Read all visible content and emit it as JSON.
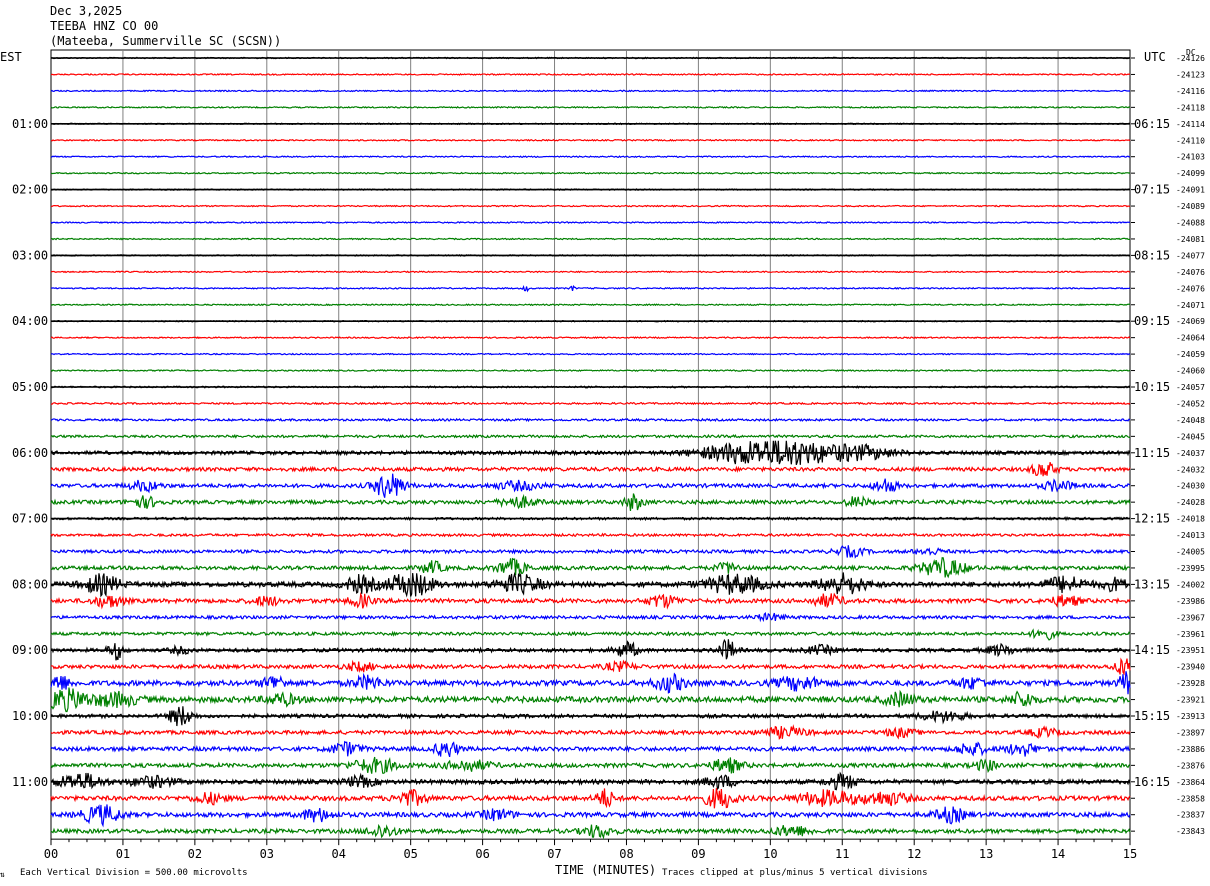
{
  "header": {
    "date": "Dec 3,2025",
    "station": "TEEBA HNZ CO 00",
    "location": "(Mateeba, Summerville SC (SCSN))"
  },
  "left_timezone": "EST",
  "right_timezone": "UTC",
  "dc_label": "DC",
  "footer": {
    "scale_note": "Each Vertical Division =  500.00 microvolts",
    "xlabel": "TIME (MINUTES)",
    "clip_note": "Traces clipped at plus/minus 5 vertical divisions"
  },
  "colors": {
    "cycle": [
      "#000000",
      "#ff0000",
      "#0000ff",
      "#008000"
    ],
    "grid": "#808080"
  },
  "chart_data": {
    "type": "line",
    "x_range": [
      0,
      15
    ],
    "x_ticks": [
      "00",
      "01",
      "02",
      "03",
      "04",
      "05",
      "06",
      "07",
      "08",
      "09",
      "10",
      "11",
      "12",
      "13",
      "14",
      "15"
    ],
    "left_time_labels": [
      "01:00",
      "02:00",
      "03:00",
      "04:00",
      "05:00",
      "06:00",
      "07:00",
      "08:00",
      "09:00",
      "10:00",
      "11:00"
    ],
    "right_time_labels": [
      "06:15",
      "07:15",
      "08:15",
      "09:15",
      "10:15",
      "11:15",
      "12:15",
      "13:15",
      "14:15",
      "15:15",
      "16:15"
    ],
    "dc_offsets": [
      "-24126",
      "-24123",
      "-24116",
      "-24118",
      "-24114",
      "-24110",
      "-24103",
      "-24099",
      "-24091",
      "-24089",
      "-24088",
      "-24081",
      "-24077",
      "-24076",
      "-24076",
      "-24071",
      "-24069",
      "-24064",
      "-24059",
      "-24060",
      "-24057",
      "-24052",
      "-24048",
      "-24045",
      "-24037",
      "-24032",
      "-24030",
      "-24028",
      "-24018",
      "-24013",
      "-24005",
      "-23995",
      "-24002",
      "-23986",
      "-23967",
      "-23961",
      "-23951",
      "-23940",
      "-23928",
      "-23921",
      "-23913",
      "-23897",
      "-23886",
      "-23876",
      "-23864",
      "-23858",
      "-23837",
      "-23843"
    ],
    "noise_levels": [
      0.6,
      0.6,
      0.6,
      0.6,
      0.6,
      0.6,
      0.6,
      0.6,
      0.6,
      0.6,
      0.6,
      0.6,
      0.6,
      0.6,
      0.6,
      0.6,
      0.6,
      0.6,
      0.6,
      0.6,
      0.8,
      0.8,
      1.0,
      1.2,
      1.8,
      1.8,
      1.8,
      1.8,
      1.2,
      1.2,
      1.5,
      1.8,
      2.5,
      2.0,
      1.5,
      1.5,
      1.8,
      1.8,
      2.5,
      2.8,
      1.8,
      1.8,
      2.0,
      2.0,
      2.2,
      2.2,
      2.2,
      2.0
    ],
    "bursts": [
      {
        "trace": 14,
        "t": 6.6,
        "amp": 4,
        "w": 0.03
      },
      {
        "trace": 14,
        "t": 7.25,
        "amp": 3,
        "w": 0.03
      },
      {
        "trace": 24,
        "t": 9.6,
        "amp": 9,
        "w": 0.6
      },
      {
        "trace": 24,
        "t": 10.3,
        "amp": 11,
        "w": 0.5
      },
      {
        "trace": 24,
        "t": 11.2,
        "amp": 7,
        "w": 0.5
      },
      {
        "trace": 25,
        "t": 13.8,
        "amp": 8,
        "w": 0.15
      },
      {
        "trace": 26,
        "t": 1.3,
        "amp": 5,
        "w": 0.2
      },
      {
        "trace": 26,
        "t": 4.7,
        "amp": 13,
        "w": 0.2
      },
      {
        "trace": 26,
        "t": 6.5,
        "amp": 4,
        "w": 0.3
      },
      {
        "trace": 26,
        "t": 11.6,
        "amp": 7,
        "w": 0.15
      },
      {
        "trace": 26,
        "t": 14.0,
        "amp": 5,
        "w": 0.2
      },
      {
        "trace": 27,
        "t": 1.3,
        "amp": 5,
        "w": 0.2
      },
      {
        "trace": 27,
        "t": 6.5,
        "amp": 5,
        "w": 0.25
      },
      {
        "trace": 27,
        "t": 8.1,
        "amp": 8,
        "w": 0.12
      },
      {
        "trace": 27,
        "t": 11.2,
        "amp": 5,
        "w": 0.15
      },
      {
        "trace": 30,
        "t": 11.1,
        "amp": 5,
        "w": 0.2
      },
      {
        "trace": 30,
        "t": 12.2,
        "amp": 3,
        "w": 0.2
      },
      {
        "trace": 31,
        "t": 5.3,
        "amp": 6,
        "w": 0.15
      },
      {
        "trace": 31,
        "t": 6.4,
        "amp": 8,
        "w": 0.2
      },
      {
        "trace": 31,
        "t": 9.4,
        "amp": 5,
        "w": 0.15
      },
      {
        "trace": 31,
        "t": 12.4,
        "amp": 9,
        "w": 0.3
      },
      {
        "trace": 32,
        "t": 0.7,
        "amp": 9,
        "w": 0.25
      },
      {
        "trace": 32,
        "t": 4.3,
        "amp": 8,
        "w": 0.2
      },
      {
        "trace": 32,
        "t": 5.0,
        "amp": 12,
        "w": 0.3
      },
      {
        "trace": 32,
        "t": 6.5,
        "amp": 9,
        "w": 0.3
      },
      {
        "trace": 32,
        "t": 9.5,
        "amp": 9,
        "w": 0.4
      },
      {
        "trace": 32,
        "t": 11.0,
        "amp": 10,
        "w": 0.3
      },
      {
        "trace": 32,
        "t": 14.1,
        "amp": 7,
        "w": 0.3
      },
      {
        "trace": 32,
        "t": 14.8,
        "amp": 6,
        "w": 0.15
      },
      {
        "trace": 33,
        "t": 0.8,
        "amp": 6,
        "w": 0.2
      },
      {
        "trace": 33,
        "t": 3.0,
        "amp": 4,
        "w": 0.2
      },
      {
        "trace": 33,
        "t": 4.3,
        "amp": 6,
        "w": 0.15
      },
      {
        "trace": 33,
        "t": 8.5,
        "amp": 6,
        "w": 0.2
      },
      {
        "trace": 33,
        "t": 10.8,
        "amp": 6,
        "w": 0.2
      },
      {
        "trace": 33,
        "t": 14.1,
        "amp": 5,
        "w": 0.2
      },
      {
        "trace": 34,
        "t": 10.0,
        "amp": 3,
        "w": 0.2
      },
      {
        "trace": 35,
        "t": 13.8,
        "amp": 6,
        "w": 0.15
      },
      {
        "trace": 36,
        "t": 0.9,
        "amp": 9,
        "w": 0.1
      },
      {
        "trace": 36,
        "t": 1.8,
        "amp": 3,
        "w": 0.15
      },
      {
        "trace": 36,
        "t": 8.0,
        "amp": 8,
        "w": 0.15
      },
      {
        "trace": 36,
        "t": 9.4,
        "amp": 10,
        "w": 0.12
      },
      {
        "trace": 36,
        "t": 10.7,
        "amp": 4,
        "w": 0.2
      },
      {
        "trace": 36,
        "t": 13.2,
        "amp": 5,
        "w": 0.2
      },
      {
        "trace": 37,
        "t": 4.3,
        "amp": 4,
        "w": 0.2
      },
      {
        "trace": 37,
        "t": 7.9,
        "amp": 4,
        "w": 0.2
      },
      {
        "trace": 37,
        "t": 14.9,
        "amp": 8,
        "w": 0.12
      },
      {
        "trace": 38,
        "t": 0.1,
        "amp": 8,
        "w": 0.15
      },
      {
        "trace": 38,
        "t": 3.1,
        "amp": 7,
        "w": 0.15
      },
      {
        "trace": 38,
        "t": 4.4,
        "amp": 6,
        "w": 0.2
      },
      {
        "trace": 38,
        "t": 8.6,
        "amp": 8,
        "w": 0.2
      },
      {
        "trace": 38,
        "t": 10.4,
        "amp": 6,
        "w": 0.3
      },
      {
        "trace": 38,
        "t": 12.8,
        "amp": 5,
        "w": 0.2
      },
      {
        "trace": 38,
        "t": 14.95,
        "amp": 10,
        "w": 0.1
      },
      {
        "trace": 39,
        "t": 0.2,
        "amp": 10,
        "w": 0.3
      },
      {
        "trace": 39,
        "t": 0.9,
        "amp": 6,
        "w": 0.3
      },
      {
        "trace": 39,
        "t": 3.2,
        "amp": 5,
        "w": 0.2
      },
      {
        "trace": 39,
        "t": 11.8,
        "amp": 6,
        "w": 0.2
      },
      {
        "trace": 39,
        "t": 13.5,
        "amp": 7,
        "w": 0.15
      },
      {
        "trace": 40,
        "t": 1.8,
        "amp": 10,
        "w": 0.15
      },
      {
        "trace": 40,
        "t": 12.4,
        "amp": 5,
        "w": 0.3
      },
      {
        "trace": 41,
        "t": 10.2,
        "amp": 5,
        "w": 0.3
      },
      {
        "trace": 41,
        "t": 11.8,
        "amp": 4,
        "w": 0.2
      },
      {
        "trace": 41,
        "t": 13.8,
        "amp": 4,
        "w": 0.2
      },
      {
        "trace": 42,
        "t": 4.1,
        "amp": 6,
        "w": 0.2
      },
      {
        "trace": 42,
        "t": 5.5,
        "amp": 8,
        "w": 0.15
      },
      {
        "trace": 42,
        "t": 12.8,
        "amp": 6,
        "w": 0.2
      },
      {
        "trace": 42,
        "t": 13.5,
        "amp": 6,
        "w": 0.2
      },
      {
        "trace": 43,
        "t": 4.5,
        "amp": 7,
        "w": 0.3
      },
      {
        "trace": 43,
        "t": 5.8,
        "amp": 5,
        "w": 0.3
      },
      {
        "trace": 43,
        "t": 9.4,
        "amp": 7,
        "w": 0.2
      },
      {
        "trace": 43,
        "t": 13.0,
        "amp": 5,
        "w": 0.15
      },
      {
        "trace": 44,
        "t": 0.4,
        "amp": 8,
        "w": 0.3
      },
      {
        "trace": 44,
        "t": 1.4,
        "amp": 5,
        "w": 0.3
      },
      {
        "trace": 44,
        "t": 4.3,
        "amp": 5,
        "w": 0.2
      },
      {
        "trace": 44,
        "t": 9.3,
        "amp": 6,
        "w": 0.2
      },
      {
        "trace": 44,
        "t": 11.0,
        "amp": 7,
        "w": 0.2
      },
      {
        "trace": 45,
        "t": 2.2,
        "amp": 5,
        "w": 0.2
      },
      {
        "trace": 45,
        "t": 5.0,
        "amp": 7,
        "w": 0.2
      },
      {
        "trace": 45,
        "t": 7.7,
        "amp": 9,
        "w": 0.12
      },
      {
        "trace": 45,
        "t": 9.3,
        "amp": 10,
        "w": 0.2
      },
      {
        "trace": 45,
        "t": 10.8,
        "amp": 7,
        "w": 0.4
      },
      {
        "trace": 45,
        "t": 11.6,
        "amp": 6,
        "w": 0.3
      },
      {
        "trace": 46,
        "t": 0.7,
        "amp": 9,
        "w": 0.25
      },
      {
        "trace": 46,
        "t": 3.7,
        "amp": 6,
        "w": 0.2
      },
      {
        "trace": 46,
        "t": 6.2,
        "amp": 5,
        "w": 0.2
      },
      {
        "trace": 46,
        "t": 12.5,
        "amp": 7,
        "w": 0.2
      },
      {
        "trace": 47,
        "t": 4.6,
        "amp": 6,
        "w": 0.2
      },
      {
        "trace": 47,
        "t": 7.6,
        "amp": 6,
        "w": 0.2
      },
      {
        "trace": 47,
        "t": 10.3,
        "amp": 5,
        "w": 0.25
      }
    ]
  }
}
